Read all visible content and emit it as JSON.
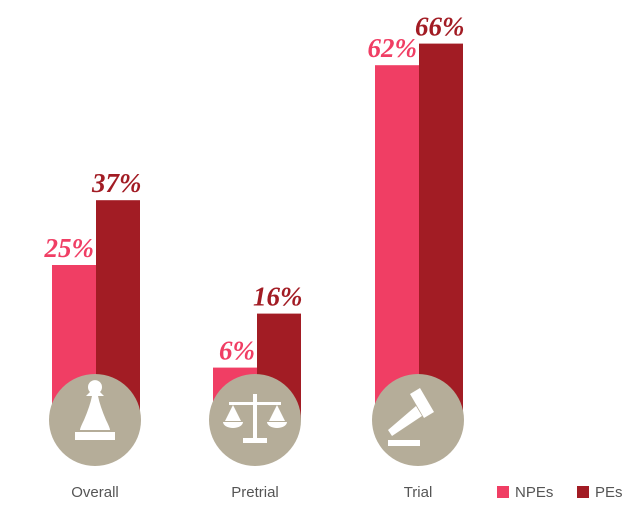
{
  "chart_data": {
    "type": "bar",
    "categories": [
      "Overall",
      "Pretrial",
      "Trial"
    ],
    "series": [
      {
        "name": "NPEs",
        "color": "#f03e64",
        "values": [
          25,
          6,
          62
        ],
        "value_labels": [
          "25%",
          "6%",
          "62%"
        ]
      },
      {
        "name": "PEs",
        "color": "#a21c24",
        "values": [
          37,
          16,
          66
        ],
        "value_labels": [
          "37%",
          "16%",
          "66%"
        ]
      }
    ],
    "icon_color": "#b5ad99"
  }
}
